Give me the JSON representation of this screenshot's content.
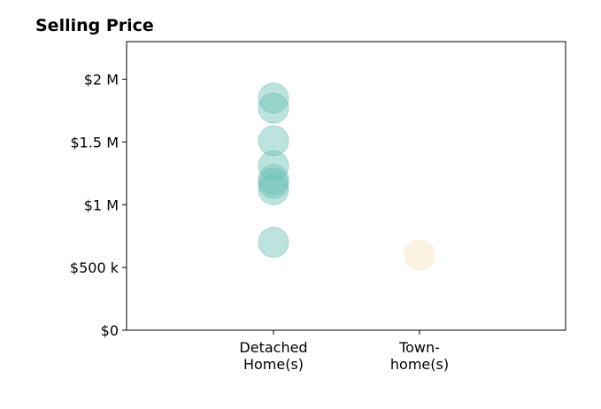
{
  "chart_data": {
    "type": "scatter",
    "title": "Selling Price",
    "categories": [
      "Detached\nHome(s)",
      "Town-\nhome(s)"
    ],
    "ylim": [
      0,
      2300000
    ],
    "yticks": [
      {
        "value": 0,
        "label": "$0"
      },
      {
        "value": 500000,
        "label": "$500 k"
      },
      {
        "value": 1000000,
        "label": "$1 M"
      },
      {
        "value": 1500000,
        "label": "$1.5 M"
      },
      {
        "value": 2000000,
        "label": "$2 M"
      }
    ],
    "series": [
      {
        "category": "Detached\nHome(s)",
        "color": "#6cc0b6",
        "values": [
          1850000,
          1770000,
          1510000,
          1310000,
          1200000,
          1170000,
          1120000,
          700000
        ]
      },
      {
        "category": "Town-\nhome(s)",
        "color": "#f6e2bb",
        "values": [
          600000
        ]
      }
    ],
    "grid": false,
    "legend": "none"
  }
}
